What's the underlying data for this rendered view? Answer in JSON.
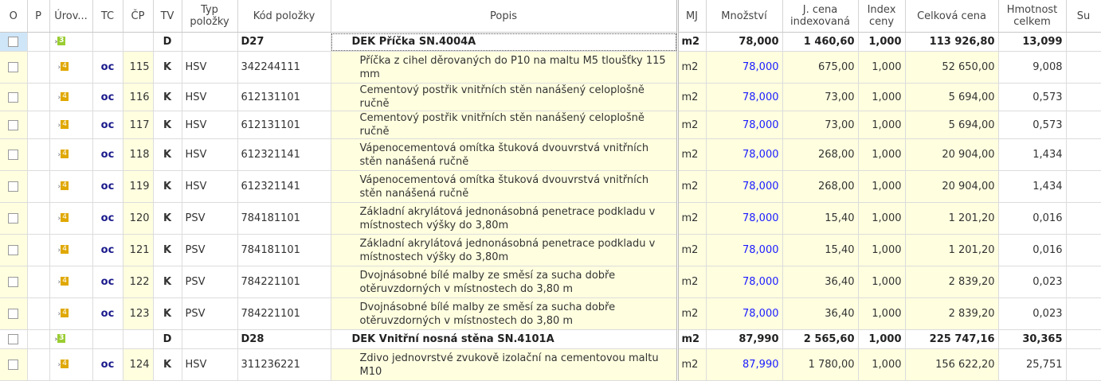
{
  "headers": [
    "O",
    "P",
    "Úrov...",
    "TC",
    "ČP",
    "TV",
    "Typ položky",
    "Kód položky",
    "Popis",
    "MJ",
    "Množství",
    "J. cena indexovaná",
    "Index ceny",
    "Celková cena",
    "Hmotnost celkem",
    "Su"
  ],
  "colors": {
    "accent": "#1a1aff",
    "edit_cell": "#ffffe0",
    "level3": "#9acd32",
    "level4": "#e0a800"
  },
  "rows": [
    {
      "type": "d",
      "level": "3",
      "tc": "",
      "cp": "",
      "tv": "D",
      "typ": "",
      "kod": "D27",
      "popis": "DEK Příčka SN.4004A",
      "mj": "m2",
      "mnozstvi": "78,000",
      "jcena": "1 460,60",
      "index": "1,000",
      "celkem": "113 926,80",
      "hmotnost": "13,099"
    },
    {
      "type": "i",
      "tall": true,
      "level": "4",
      "tc": "oc",
      "cp": "115",
      "tv": "K",
      "typ": "HSV",
      "kod": "342244111",
      "popis": "Příčka z cihel děrovaných do P10 na maltu M5 tloušťky 115 mm",
      "mj": "m2",
      "mnozstvi": "78,000",
      "jcena": "675,00",
      "index": "1,000",
      "celkem": "52 650,00",
      "hmotnost": "9,008"
    },
    {
      "type": "i",
      "level": "4",
      "tc": "oc",
      "cp": "116",
      "tv": "K",
      "typ": "HSV",
      "kod": "612131101",
      "popis": "Cementový postřik vnitřních stěn nanášený celoplošně ručně",
      "mj": "m2",
      "mnozstvi": "78,000",
      "jcena": "73,00",
      "index": "1,000",
      "celkem": "5 694,00",
      "hmotnost": "0,573"
    },
    {
      "type": "i",
      "level": "4",
      "tc": "oc",
      "cp": "117",
      "tv": "K",
      "typ": "HSV",
      "kod": "612131101",
      "popis": "Cementový postřik vnitřních stěn nanášený celoplošně ručně",
      "mj": "m2",
      "mnozstvi": "78,000",
      "jcena": "73,00",
      "index": "1,000",
      "celkem": "5 694,00",
      "hmotnost": "0,573"
    },
    {
      "type": "i",
      "tall": true,
      "level": "4",
      "tc": "oc",
      "cp": "118",
      "tv": "K",
      "typ": "HSV",
      "kod": "612321141",
      "popis": "Vápenocementová omítka štuková dvouvrstvá vnitřních stěn nanášená ručně",
      "mj": "m2",
      "mnozstvi": "78,000",
      "jcena": "268,00",
      "index": "1,000",
      "celkem": "20 904,00",
      "hmotnost": "1,434"
    },
    {
      "type": "i",
      "tall": true,
      "level": "4",
      "tc": "oc",
      "cp": "119",
      "tv": "K",
      "typ": "HSV",
      "kod": "612321141",
      "popis": "Vápenocementová omítka štuková dvouvrstvá vnitřních stěn nanášená ručně",
      "mj": "m2",
      "mnozstvi": "78,000",
      "jcena": "268,00",
      "index": "1,000",
      "celkem": "20 904,00",
      "hmotnost": "1,434"
    },
    {
      "type": "i",
      "tall": true,
      "level": "4",
      "tc": "oc",
      "cp": "120",
      "tv": "K",
      "typ": "PSV",
      "kod": "784181101",
      "popis": "Základní akrylátová jednonásobná penetrace podkladu v místnostech výšky do 3,80m",
      "mj": "m2",
      "mnozstvi": "78,000",
      "jcena": "15,40",
      "index": "1,000",
      "celkem": "1 201,20",
      "hmotnost": "0,016"
    },
    {
      "type": "i",
      "tall": true,
      "level": "4",
      "tc": "oc",
      "cp": "121",
      "tv": "K",
      "typ": "PSV",
      "kod": "784181101",
      "popis": "Základní akrylátová jednonásobná penetrace podkladu v místnostech výšky do 3,80m",
      "mj": "m2",
      "mnozstvi": "78,000",
      "jcena": "15,40",
      "index": "1,000",
      "celkem": "1 201,20",
      "hmotnost": "0,016"
    },
    {
      "type": "i",
      "tall": true,
      "level": "4",
      "tc": "oc",
      "cp": "122",
      "tv": "K",
      "typ": "PSV",
      "kod": "784221101",
      "popis": "Dvojnásobné bílé malby ze směsí za sucha dobře otěruvzdorných v místnostech do 3,80 m",
      "mj": "m2",
      "mnozstvi": "78,000",
      "jcena": "36,40",
      "index": "1,000",
      "celkem": "2 839,20",
      "hmotnost": "0,023"
    },
    {
      "type": "i",
      "tall": true,
      "level": "4",
      "tc": "oc",
      "cp": "123",
      "tv": "K",
      "typ": "PSV",
      "kod": "784221101",
      "popis": "Dvojnásobné bílé malby ze směsí za sucha dobře otěruvzdorných v místnostech do 3,80 m",
      "mj": "m2",
      "mnozstvi": "78,000",
      "jcena": "36,40",
      "index": "1,000",
      "celkem": "2 839,20",
      "hmotnost": "0,023"
    },
    {
      "type": "d",
      "level": "3",
      "tc": "",
      "cp": "",
      "tv": "D",
      "typ": "",
      "kod": "D28",
      "popis": "DEK Vnitřní nosná stěna SN.4101A",
      "mj": "m2",
      "mnozstvi": "87,990",
      "jcena": "2 565,60",
      "index": "1,000",
      "celkem": "225 747,16",
      "hmotnost": "30,365"
    },
    {
      "type": "i",
      "tall": true,
      "level": "4",
      "tc": "oc",
      "cp": "124",
      "tv": "K",
      "typ": "HSV",
      "kod": "311236221",
      "popis": "Zdivo jednovrstvé zvukově izolační na cementovou maltu M10",
      "mj": "m2",
      "mnozstvi": "87,990",
      "jcena": "1 780,00",
      "index": "1,000",
      "celkem": "156 622,20",
      "hmotnost": "25,751"
    }
  ]
}
